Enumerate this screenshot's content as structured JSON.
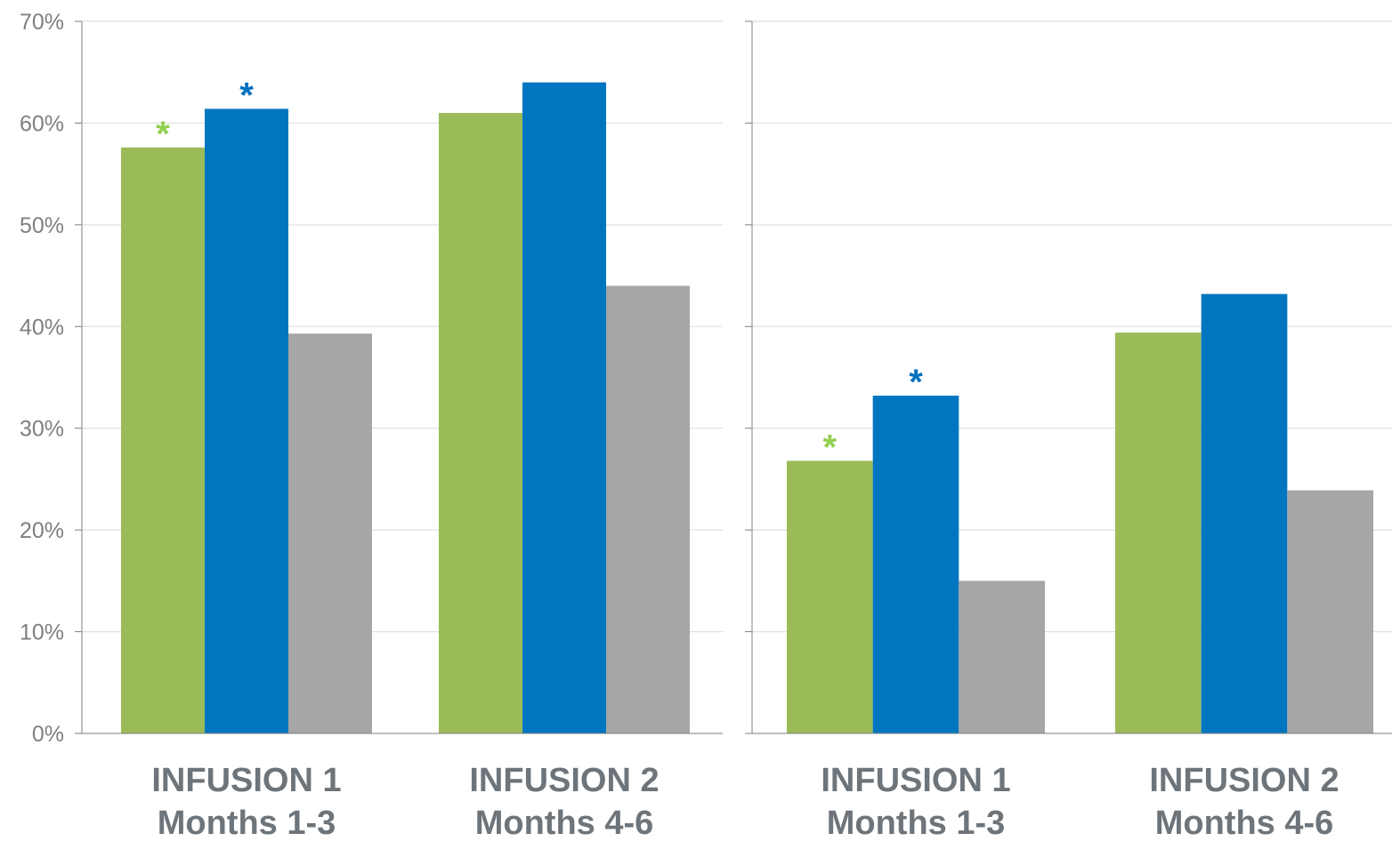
{
  "colors": {
    "series_green": "#9bbb59",
    "series_blue": "#0076c0",
    "series_gray": "#a6a6a6",
    "star_green": "#92d050",
    "star_blue": "#0070c0",
    "grid": "#d9d9d9",
    "axis": "#7f7f7f",
    "tick_text": "#7f7f7f",
    "category_text": "#6d747a"
  },
  "chart_data": [
    {
      "type": "bar",
      "y_ticks": [
        "0%",
        "10%",
        "20%",
        "30%",
        "40%",
        "50%",
        "60%",
        "70%"
      ],
      "ylim": [
        0,
        70
      ],
      "grid": true,
      "categories": [
        {
          "line1": "INFUSION 1",
          "line2": "Months 1-3"
        },
        {
          "line1": "INFUSION 2",
          "line2": "Months 4-6"
        }
      ],
      "series": [
        {
          "color": "series_green",
          "values": [
            57.6,
            61.0
          ]
        },
        {
          "color": "series_blue",
          "values": [
            61.4,
            64.0
          ]
        },
        {
          "color": "series_gray",
          "values": [
            39.3,
            44.0
          ]
        }
      ],
      "annotations": [
        {
          "text": "*",
          "category": 0,
          "series": 0,
          "color": "star_green"
        },
        {
          "text": "*",
          "category": 0,
          "series": 1,
          "color": "star_blue"
        }
      ]
    },
    {
      "type": "bar",
      "y_ticks": [
        "",
        "",
        "",
        "",
        "",
        "",
        "",
        ""
      ],
      "ylim": [
        0,
        70
      ],
      "grid": true,
      "categories": [
        {
          "line1": "INFUSION 1",
          "line2": "Months 1-3"
        },
        {
          "line1": "INFUSION 2",
          "line2": "Months 4-6"
        }
      ],
      "series": [
        {
          "color": "series_green",
          "values": [
            26.8,
            39.4
          ]
        },
        {
          "color": "series_blue",
          "values": [
            33.2,
            43.2
          ]
        },
        {
          "color": "series_gray",
          "values": [
            15.0,
            23.9
          ]
        }
      ],
      "annotations": [
        {
          "text": "*",
          "category": 0,
          "series": 0,
          "color": "star_green"
        },
        {
          "text": "*",
          "category": 0,
          "series": 1,
          "color": "star_blue"
        }
      ]
    }
  ]
}
